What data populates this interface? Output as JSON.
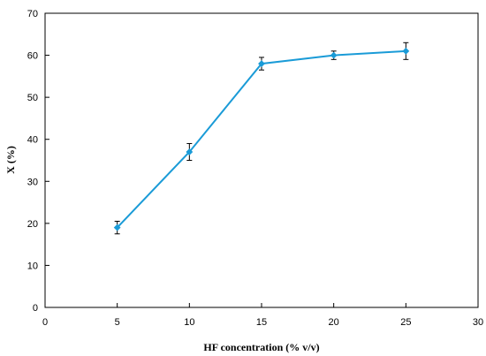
{
  "chart_data": {
    "type": "line",
    "title": "",
    "xlabel": "HF concentration (% v/v)",
    "ylabel": "X (%)",
    "xlim": [
      0,
      30
    ],
    "ylim": [
      0,
      70
    ],
    "xticks": [
      "0",
      "5",
      "10",
      "15",
      "20",
      "25",
      "30"
    ],
    "yticks": [
      "0",
      "10",
      "20",
      "30",
      "40",
      "50",
      "60",
      "70"
    ],
    "grid": false,
    "legend": "none",
    "series": [
      {
        "color": "#1a9bd7",
        "x": [
          5,
          10,
          15,
          20,
          25
        ],
        "y": [
          19,
          37,
          58,
          60,
          61
        ],
        "error": [
          1.5,
          2,
          1.5,
          1,
          2
        ]
      }
    ]
  }
}
